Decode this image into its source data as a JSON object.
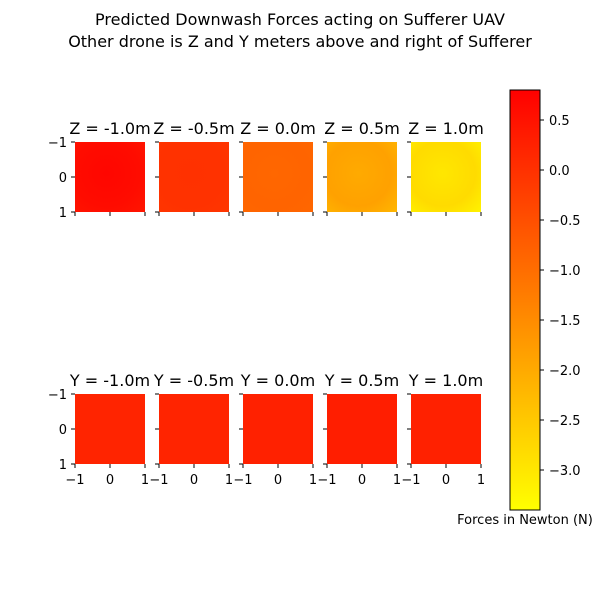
{
  "title_line1": "Predicted Downwash Forces acting on Sufferer UAV",
  "title_line2": "Other drone is Z and Y meters above and right of Sufferer",
  "chart_data": {
    "type": "heatmap",
    "colormap": "autumn",
    "colormap_colors": {
      "low": "#ffff00",
      "high": "#ff0000"
    },
    "colorbar": {
      "label": "Forces in Newton (N)",
      "range": [
        -3.4,
        0.8
      ],
      "ticks": [
        0.5,
        0.0,
        -0.5,
        -1.0,
        -1.5,
        -2.0,
        -2.5,
        -3.0
      ],
      "tick_labels": [
        "0.5",
        "0.0",
        "−0.5",
        "−1.0",
        "−1.5",
        "−2.0",
        "−2.5",
        "−3.0"
      ]
    },
    "axis_ticks": [
      -1,
      0,
      1
    ],
    "axis_tick_labels": [
      "−1",
      "0",
      "1"
    ],
    "rows": [
      {
        "variable": "Z",
        "panel_titles": [
          "Z = -1.0m",
          "Z = -0.5m",
          "Z = 0.0m",
          "Z = 0.5m",
          "Z = 1.0m"
        ],
        "values": [
          {
            "center": 0.7,
            "corner_tl": 0.5,
            "corner_br": 0.4
          },
          {
            "center": 0.0,
            "corner_tl": -0.05,
            "corner_br": -0.1
          },
          {
            "center": -0.9,
            "corner_tl": -0.8,
            "corner_br": -0.9
          },
          {
            "center": -2.0,
            "corner_tl": -1.7,
            "corner_br": -2.3
          },
          {
            "center": -3.0,
            "corner_tl": -2.6,
            "corner_br": -3.3
          }
        ]
      },
      {
        "variable": "Y",
        "panel_titles": [
          "Y = -1.0m",
          "Y = -0.5m",
          "Y = 0.0m",
          "Y = 0.5m",
          "Y = 1.0m"
        ],
        "values": [
          {
            "center": 0.2,
            "corner_tl": 0.2,
            "corner_br": 0.2
          },
          {
            "center": 0.2,
            "corner_tl": 0.2,
            "corner_br": 0.2
          },
          {
            "center": 0.25,
            "corner_tl": 0.25,
            "corner_br": 0.25
          },
          {
            "center": 0.3,
            "corner_tl": 0.3,
            "corner_br": 0.3
          },
          {
            "center": 0.25,
            "corner_tl": 0.25,
            "corner_br": 0.25
          }
        ]
      }
    ]
  }
}
